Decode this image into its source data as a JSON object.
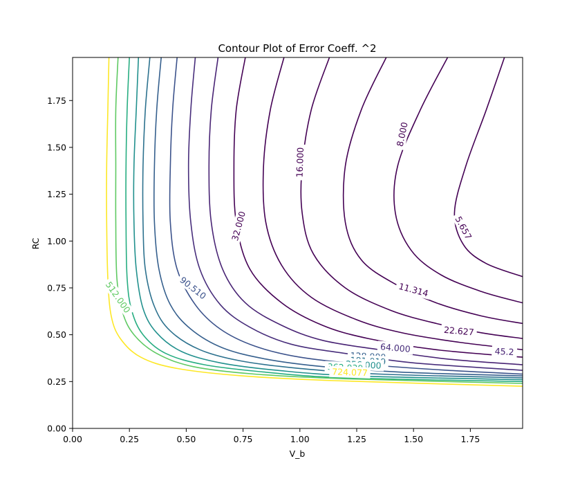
{
  "chart_data": {
    "type": "contour",
    "title": "Contour Plot of Error Coeff. ^2",
    "xlabel": "V_b",
    "ylabel": "RC",
    "xlim": [
      0.0,
      1.98
    ],
    "ylim": [
      0.0,
      1.98
    ],
    "xticks": [
      "0.00",
      "0.25",
      "0.50",
      "0.75",
      "1.00",
      "1.25",
      "1.50",
      "1.75"
    ],
    "xtick_values": [
      0.0,
      0.25,
      0.5,
      0.75,
      1.0,
      1.25,
      1.5,
      1.75
    ],
    "yticks": [
      "0.00",
      "0.25",
      "0.50",
      "0.75",
      "1.00",
      "1.25",
      "1.50",
      "1.75"
    ],
    "ytick_values": [
      0.0,
      0.25,
      0.5,
      0.75,
      1.0,
      1.25,
      1.5,
      1.75
    ],
    "grid": false,
    "levels": [
      {
        "value": 5.657,
        "color": "#440154",
        "label": "5.657",
        "points": [
          [
            1.9,
            1.98
          ],
          [
            1.82,
            1.7
          ],
          [
            1.73,
            1.4
          ],
          [
            1.68,
            1.15
          ],
          [
            1.72,
            0.98
          ],
          [
            1.82,
            0.88
          ],
          [
            1.98,
            0.81
          ]
        ],
        "label_at": [
          1.72,
          1.07
        ],
        "label_rot": 62
      },
      {
        "value": 8.0,
        "color": "#440154",
        "label": "8.000",
        "points": [
          [
            1.65,
            1.98
          ],
          [
            1.53,
            1.7
          ],
          [
            1.43,
            1.4
          ],
          [
            1.42,
            1.15
          ],
          [
            1.49,
            0.95
          ],
          [
            1.62,
            0.82
          ],
          [
            1.8,
            0.73
          ],
          [
            1.98,
            0.67
          ]
        ],
        "label_at": [
          1.45,
          1.57
        ],
        "label_rot": -78
      },
      {
        "value": 11.314,
        "color": "#440154",
        "label": "11.314",
        "points": [
          [
            1.38,
            1.98
          ],
          [
            1.27,
            1.7
          ],
          [
            1.2,
            1.4
          ],
          [
            1.2,
            1.1
          ],
          [
            1.27,
            0.9
          ],
          [
            1.42,
            0.77
          ],
          [
            1.6,
            0.67
          ],
          [
            1.8,
            0.6
          ],
          [
            1.98,
            0.56
          ]
        ],
        "label_at": [
          1.5,
          0.74
        ],
        "label_rot": 15
      },
      {
        "value": 16.0,
        "color": "#440154",
        "label": "16.000",
        "points": [
          [
            1.13,
            1.98
          ],
          [
            1.05,
            1.7
          ],
          [
            1.01,
            1.4
          ],
          [
            1.01,
            1.15
          ],
          [
            1.06,
            0.93
          ],
          [
            1.2,
            0.75
          ],
          [
            1.4,
            0.63
          ],
          [
            1.6,
            0.56
          ],
          [
            1.8,
            0.51
          ],
          [
            1.98,
            0.48
          ]
        ],
        "label_at": [
          1.0,
          1.42
        ],
        "label_rot": -88
      },
      {
        "value": 22.627,
        "color": "#440154",
        "label": "22.627",
        "points": [
          [
            0.93,
            1.98
          ],
          [
            0.87,
            1.7
          ],
          [
            0.84,
            1.4
          ],
          [
            0.85,
            1.1
          ],
          [
            0.92,
            0.87
          ],
          [
            1.05,
            0.7
          ],
          [
            1.25,
            0.58
          ],
          [
            1.45,
            0.51
          ],
          [
            1.7,
            0.46
          ],
          [
            1.98,
            0.42
          ]
        ],
        "label_at": [
          1.7,
          0.52
        ],
        "label_rot": 5
      },
      {
        "value": 32.0,
        "color": "#440154",
        "label": "32.000",
        "points": [
          [
            0.76,
            1.98
          ],
          [
            0.72,
            1.7
          ],
          [
            0.71,
            1.4
          ],
          [
            0.72,
            1.1
          ],
          [
            0.78,
            0.85
          ],
          [
            0.92,
            0.67
          ],
          [
            1.1,
            0.55
          ],
          [
            1.3,
            0.48
          ],
          [
            1.6,
            0.42
          ],
          [
            1.98,
            0.38
          ]
        ],
        "label_at": [
          0.73,
          1.08
        ],
        "label_rot": -75
      },
      {
        "value": 45.2,
        "color": "#482374",
        "label": "45.2",
        "points": [
          [
            0.64,
            1.98
          ],
          [
            0.61,
            1.7
          ],
          [
            0.6,
            1.4
          ],
          [
            0.61,
            1.1
          ],
          [
            0.66,
            0.85
          ],
          [
            0.76,
            0.67
          ],
          [
            0.92,
            0.55
          ],
          [
            1.1,
            0.47
          ],
          [
            1.35,
            0.42
          ],
          [
            1.65,
            0.37
          ],
          [
            1.98,
            0.34
          ]
        ],
        "label_at": [
          1.9,
          0.41
        ],
        "label_rot": 3
      },
      {
        "value": 64.0,
        "color": "#472d7b",
        "label": "64.000",
        "points": [
          [
            0.54,
            1.98
          ],
          [
            0.52,
            1.7
          ],
          [
            0.51,
            1.4
          ],
          [
            0.52,
            1.1
          ],
          [
            0.56,
            0.85
          ],
          [
            0.65,
            0.66
          ],
          [
            0.78,
            0.54
          ],
          [
            0.96,
            0.45
          ],
          [
            1.2,
            0.4
          ],
          [
            1.5,
            0.35
          ],
          [
            1.98,
            0.31
          ]
        ],
        "label_at": [
          1.42,
          0.43
        ],
        "label_rot": 5
      },
      {
        "value": 90.51,
        "color": "#3b528b",
        "label": "90.510",
        "points": [
          [
            0.46,
            1.98
          ],
          [
            0.44,
            1.7
          ],
          [
            0.43,
            1.4
          ],
          [
            0.43,
            1.1
          ],
          [
            0.46,
            0.85
          ],
          [
            0.54,
            0.66
          ],
          [
            0.65,
            0.53
          ],
          [
            0.8,
            0.44
          ],
          [
            1.0,
            0.38
          ],
          [
            1.3,
            0.34
          ],
          [
            1.65,
            0.31
          ],
          [
            1.98,
            0.29
          ]
        ],
        "label_at": [
          0.53,
          0.75
        ],
        "label_rot": 38
      },
      {
        "value": 128.0,
        "color": "#355f8d",
        "label": "128.000",
        "points": [
          [
            0.39,
            1.98
          ],
          [
            0.37,
            1.7
          ],
          [
            0.36,
            1.4
          ],
          [
            0.36,
            1.1
          ],
          [
            0.38,
            0.85
          ],
          [
            0.43,
            0.66
          ],
          [
            0.52,
            0.53
          ],
          [
            0.66,
            0.43
          ],
          [
            0.85,
            0.37
          ],
          [
            1.1,
            0.33
          ],
          [
            1.45,
            0.3
          ],
          [
            1.98,
            0.28
          ]
        ],
        "label_at": [
          1.3,
          0.385
        ],
        "label_rot": 3
      },
      {
        "value": 181.019,
        "color": "#2c718e",
        "label": "181.019",
        "points": [
          [
            0.34,
            1.98
          ],
          [
            0.32,
            1.7
          ],
          [
            0.31,
            1.4
          ],
          [
            0.31,
            1.1
          ],
          [
            0.32,
            0.85
          ],
          [
            0.36,
            0.65
          ],
          [
            0.43,
            0.52
          ],
          [
            0.56,
            0.42
          ],
          [
            0.74,
            0.36
          ],
          [
            1.0,
            0.32
          ],
          [
            1.35,
            0.29
          ],
          [
            1.98,
            0.27
          ]
        ],
        "label_at": [
          1.3,
          0.36
        ],
        "label_rot": 3
      },
      {
        "value": 256.0,
        "color": "#21908d",
        "label": "256.000",
        "points": [
          [
            0.29,
            1.98
          ],
          [
            0.28,
            1.7
          ],
          [
            0.27,
            1.4
          ],
          [
            0.27,
            1.1
          ],
          [
            0.28,
            0.85
          ],
          [
            0.31,
            0.64
          ],
          [
            0.37,
            0.51
          ],
          [
            0.48,
            0.41
          ],
          [
            0.65,
            0.35
          ],
          [
            0.9,
            0.31
          ],
          [
            1.25,
            0.28
          ],
          [
            1.98,
            0.26
          ]
        ],
        "label_at": [
          1.28,
          0.34
        ],
        "label_rot": 3
      },
      {
        "value": 362.039,
        "color": "#27ad81",
        "label": "362.039",
        "points": [
          [
            0.25,
            1.98
          ],
          [
            0.24,
            1.7
          ],
          [
            0.235,
            1.4
          ],
          [
            0.235,
            1.1
          ],
          [
            0.24,
            0.8
          ],
          [
            0.26,
            0.63
          ],
          [
            0.31,
            0.5
          ],
          [
            0.41,
            0.4
          ],
          [
            0.58,
            0.34
          ],
          [
            0.85,
            0.3
          ],
          [
            1.2,
            0.27
          ],
          [
            1.98,
            0.25
          ]
        ],
        "label_at": [
          1.2,
          0.325
        ],
        "label_rot": 3
      },
      {
        "value": 512.0,
        "color": "#5ec962",
        "label": "512.000",
        "points": [
          [
            0.2,
            1.98
          ],
          [
            0.19,
            1.7
          ],
          [
            0.19,
            1.4
          ],
          [
            0.19,
            1.1
          ],
          [
            0.195,
            0.8
          ],
          [
            0.22,
            0.62
          ],
          [
            0.27,
            0.5
          ],
          [
            0.37,
            0.4
          ],
          [
            0.53,
            0.33
          ],
          [
            0.8,
            0.29
          ],
          [
            1.2,
            0.265
          ],
          [
            1.98,
            0.24
          ]
        ],
        "label_at": [
          0.2,
          0.7
        ],
        "label_rot": 55
      },
      {
        "value": 724.077,
        "color": "#fde725",
        "label": "724.077",
        "points": [
          [
            0.16,
            1.98
          ],
          [
            0.155,
            1.7
          ],
          [
            0.15,
            1.4
          ],
          [
            0.15,
            1.1
          ],
          [
            0.155,
            0.8
          ],
          [
            0.17,
            0.6
          ],
          [
            0.21,
            0.48
          ],
          [
            0.3,
            0.38
          ],
          [
            0.46,
            0.32
          ],
          [
            0.75,
            0.28
          ],
          [
            1.15,
            0.255
          ],
          [
            1.98,
            0.225
          ]
        ],
        "label_at": [
          1.22,
          0.3
        ],
        "label_rot": 2
      }
    ]
  }
}
